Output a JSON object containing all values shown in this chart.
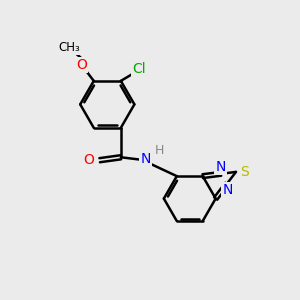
{
  "bg_color": "#ebebeb",
  "bond_color": "#000000",
  "bond_width": 1.8,
  "atom_colors": {
    "O": "#ff0000",
    "N": "#0000ff",
    "S": "#b8b800",
    "Cl": "#00aa00",
    "H": "#888888",
    "C": "#000000"
  },
  "font_size": 10,
  "fig_size": [
    3.0,
    3.0
  ],
  "dpi": 100,
  "xlim": [
    0,
    10
  ],
  "ylim": [
    0,
    10
  ]
}
